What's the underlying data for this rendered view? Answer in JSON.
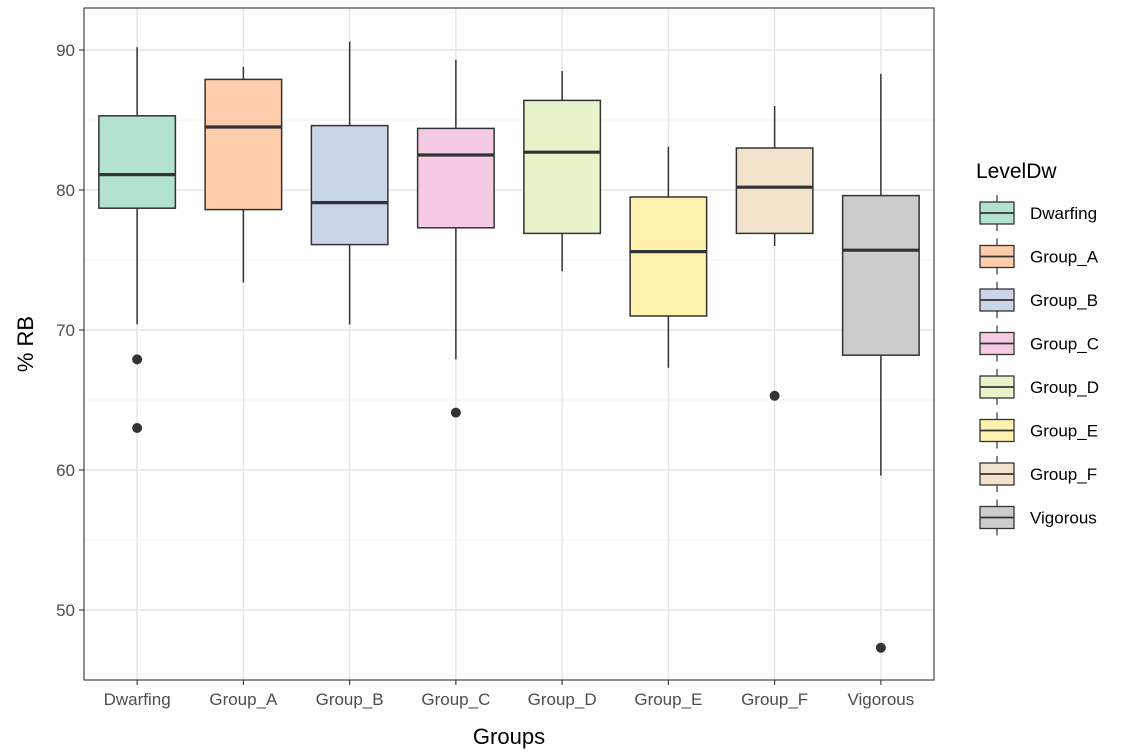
{
  "chart_data": {
    "type": "boxplot",
    "xlabel": "Groups",
    "ylabel": "% RB",
    "ylim": [
      45,
      93
    ],
    "yticks": [
      50,
      60,
      70,
      80,
      90
    ],
    "grid": true,
    "legend": {
      "title": "LevelDw",
      "position": "right"
    },
    "categories": [
      "Dwarfing",
      "Group_A",
      "Group_B",
      "Group_C",
      "Group_D",
      "Group_E",
      "Group_F",
      "Vigorous"
    ],
    "colors": [
      "#b3e2cd",
      "#fdcdac",
      "#cbd5e8",
      "#f4cae4",
      "#e6f5c9",
      "#fff2ae",
      "#f1e2cc",
      "#cccccc"
    ],
    "boxes": [
      {
        "group": "Dwarfing",
        "whisker_low": 70.4,
        "q1": 78.7,
        "median": 81.1,
        "q3": 85.3,
        "whisker_high": 90.2,
        "outliers": [
          67.9,
          63.0
        ]
      },
      {
        "group": "Group_A",
        "whisker_low": 73.4,
        "q1": 78.6,
        "median": 84.5,
        "q3": 87.9,
        "whisker_high": 88.8,
        "outliers": []
      },
      {
        "group": "Group_B",
        "whisker_low": 70.4,
        "q1": 76.1,
        "median": 79.1,
        "q3": 84.6,
        "whisker_high": 90.6,
        "outliers": []
      },
      {
        "group": "Group_C",
        "whisker_low": 67.9,
        "q1": 77.3,
        "median": 82.5,
        "q3": 84.4,
        "whisker_high": 89.3,
        "outliers": [
          64.1
        ]
      },
      {
        "group": "Group_D",
        "whisker_low": 74.2,
        "q1": 76.9,
        "median": 82.7,
        "q3": 86.4,
        "whisker_high": 88.5,
        "outliers": []
      },
      {
        "group": "Group_E",
        "whisker_low": 67.3,
        "q1": 71.0,
        "median": 75.6,
        "q3": 79.5,
        "whisker_high": 83.1,
        "outliers": []
      },
      {
        "group": "Group_F",
        "whisker_low": 76.0,
        "q1": 76.9,
        "median": 80.2,
        "q3": 83.0,
        "whisker_high": 86.0,
        "outliers": [
          65.3
        ]
      },
      {
        "group": "Vigorous",
        "whisker_low": 59.6,
        "q1": 68.2,
        "median": 75.7,
        "q3": 79.6,
        "whisker_high": 88.3,
        "outliers": [
          47.3
        ]
      }
    ]
  }
}
